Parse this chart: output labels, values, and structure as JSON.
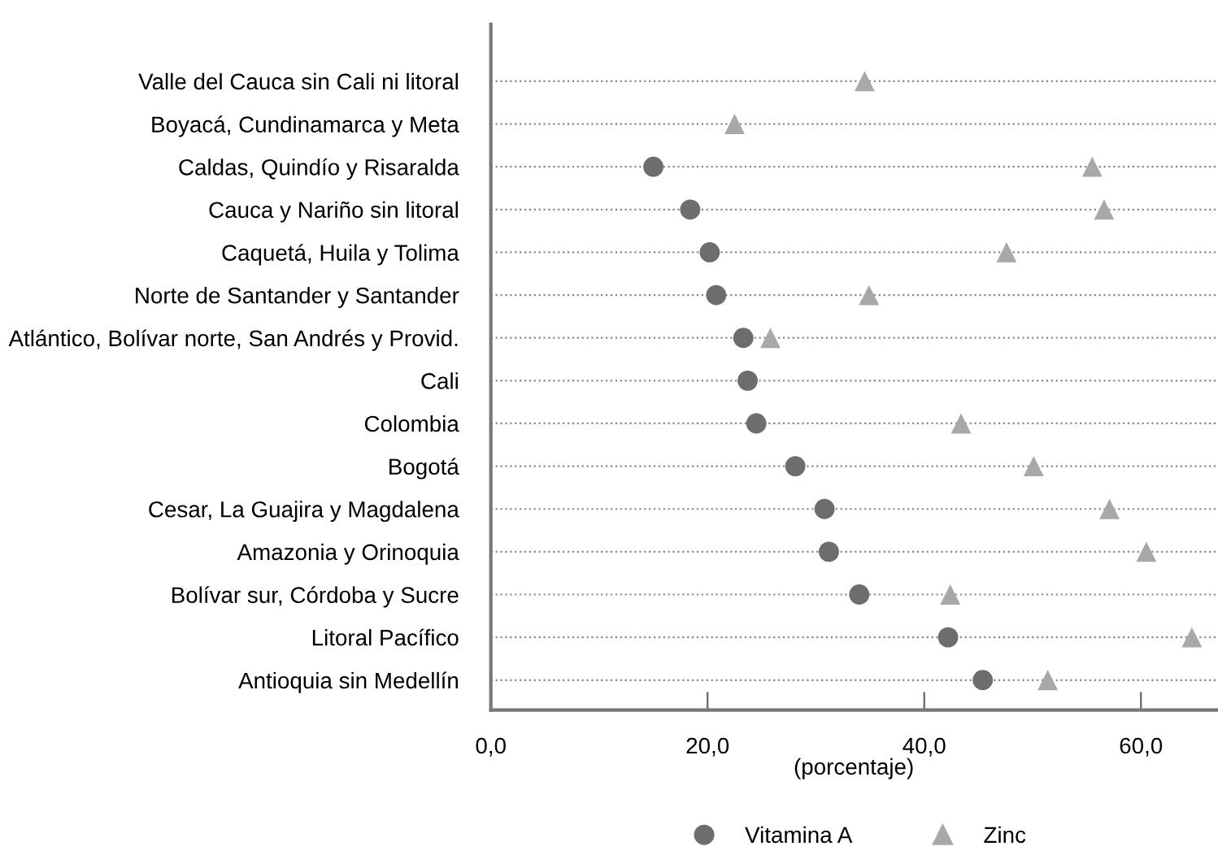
{
  "chart_data": {
    "type": "scatter",
    "xlabel": "(porcentaje)",
    "categories": [
      "Valle del Cauca sin Cali ni litoral",
      "Boyacá, Cundinamarca y Meta",
      "Caldas, Quindío y Risaralda",
      "Cauca y Nariño sin litoral",
      "Caquetá, Huila y Tolima",
      "Norte de Santander y Santander",
      "Atlántico, Bolívar norte, San Andrés y Provid.",
      "Cali",
      "Colombia",
      "Bogotá",
      "Cesar, La Guajira y Magdalena",
      "Amazonia y Orinoquia",
      "Bolívar sur, Córdoba y Sucre",
      "Litoral Pacífico",
      "Antioquia sin Medellín"
    ],
    "orientation": "horizontal",
    "series": [
      {
        "name": "Vitamina A",
        "color": "#6d6d6e",
        "marker": "circle",
        "values": [
          null,
          null,
          15.0,
          18.4,
          20.2,
          20.8,
          23.3,
          23.7,
          24.5,
          28.1,
          30.8,
          31.2,
          34.0,
          42.2,
          45.4
        ]
      },
      {
        "name": "Zinc",
        "color": "#a8a8a8",
        "marker": "triangle",
        "values": [
          34.5,
          22.5,
          55.5,
          56.6,
          47.6,
          34.9,
          25.8,
          null,
          43.4,
          50.1,
          57.1,
          60.5,
          42.4,
          64.7,
          51.4
        ]
      }
    ],
    "xlim": [
      0,
      67
    ],
    "xticks": [
      {
        "value": 0,
        "label": "0,0"
      },
      {
        "value": 20,
        "label": "20,0"
      },
      {
        "value": 40,
        "label": "40,0"
      },
      {
        "value": 60,
        "label": "60,0"
      }
    ],
    "grid": "y",
    "line_style": "dotted",
    "legend": "bottom"
  }
}
